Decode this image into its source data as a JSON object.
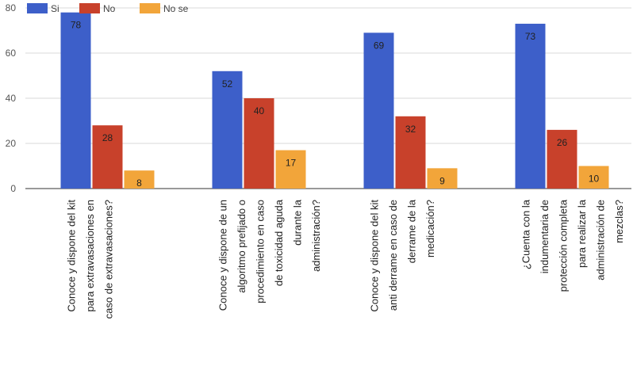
{
  "chart_data": {
    "type": "bar",
    "title": "",
    "xlabel": "",
    "ylabel": "",
    "ylim": [
      0,
      80
    ],
    "yticks": [
      0,
      20,
      40,
      60,
      80
    ],
    "grid": true,
    "legend_position": "top-left",
    "categories": [
      [
        "Conoce y dispone del kit",
        "para extravasaciones en",
        "caso de extravasaciones?"
      ],
      [
        "Conoce y dispone de un",
        "algoritmo prefijado o",
        "procedimiento en caso",
        "de toxicidad aguda",
        "durante la",
        "administración?"
      ],
      [
        "Conoce y dispone del kit",
        "anti derrame en caso de",
        "derrame de la",
        "medicación?"
      ],
      [
        "¿Cuenta con la",
        "indumentaria de",
        "protección completa",
        "para realizar  la",
        "administración de",
        "mezclas?"
      ]
    ],
    "series": [
      {
        "name": "Si",
        "color": "#3d5fc9",
        "values": [
          78,
          52,
          69,
          73
        ]
      },
      {
        "name": "No",
        "color": "#c8412b",
        "values": [
          28,
          40,
          32,
          26
        ]
      },
      {
        "name": "No se",
        "color": "#f2a53a",
        "values": [
          8,
          17,
          9,
          10
        ]
      }
    ]
  }
}
